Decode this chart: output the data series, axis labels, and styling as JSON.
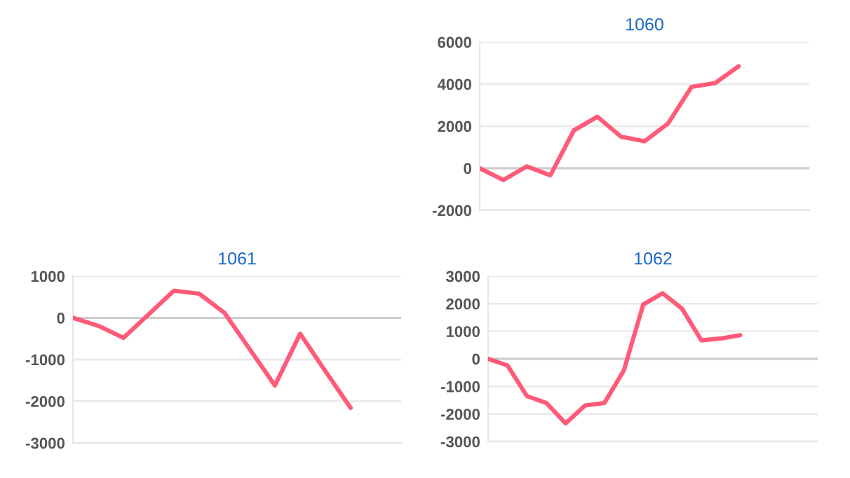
{
  "chart_data": [
    {
      "type": "line",
      "title": "1060",
      "categories": [
        null,
        null,
        null,
        null,
        null,
        null,
        null,
        null,
        null,
        null,
        null,
        null,
        null,
        null,
        null
      ],
      "series": [
        {
          "color": "#ff5a78",
          "values": [
            0,
            -560,
            90,
            -340,
            1800,
            2450,
            1500,
            1280,
            2130,
            3870,
            4050,
            4850,
            null,
            null,
            null
          ]
        }
      ],
      "ylim": [
        -2000,
        6000
      ],
      "yticks": [
        -2000,
        0,
        2000,
        4000,
        6000
      ],
      "grid": "y",
      "legend": false,
      "marker": "none",
      "line_style": "solid",
      "tick_labels": "y",
      "ref_lines": [
        {
          "axis": "y",
          "value": 0,
          "color": "#cccccc"
        }
      ]
    },
    {
      "type": "line",
      "title": "1061",
      "categories": [
        null,
        null,
        null,
        null,
        null,
        null,
        null,
        null,
        null,
        null,
        null,
        null,
        null,
        null
      ],
      "series": [
        {
          "color": "#ff5a78",
          "values": [
            0,
            -190,
            -480,
            85,
            650,
            580,
            120,
            -750,
            -1620,
            -380,
            -1280,
            -2160,
            null,
            null
          ]
        }
      ],
      "ylim": [
        -3000,
        1000
      ],
      "yticks": [
        -3000,
        -2000,
        -1000,
        0,
        1000
      ],
      "grid": "y",
      "legend": false,
      "marker": "none",
      "line_style": "solid",
      "tick_labels": "y",
      "ref_lines": [
        {
          "axis": "y",
          "value": 0,
          "color": "#cccccc"
        }
      ]
    },
    {
      "type": "line",
      "title": "1062",
      "categories": [
        null,
        null,
        null,
        null,
        null,
        null,
        null,
        null,
        null,
        null,
        null,
        null,
        null,
        null,
        null,
        null,
        null,
        null
      ],
      "series": [
        {
          "color": "#ff5a78",
          "values": [
            0,
            -240,
            -1350,
            -1600,
            -2340,
            -1690,
            -1600,
            -420,
            1970,
            2380,
            1820,
            670,
            740,
            860,
            null,
            null,
            null,
            null
          ]
        }
      ],
      "ylim": [
        -3000,
        3000
      ],
      "yticks": [
        -3000,
        -2000,
        -1000,
        0,
        1000,
        2000,
        3000
      ],
      "grid": "y",
      "legend": false,
      "marker": "none",
      "line_style": "solid",
      "tick_labels": "y",
      "ref_lines": [
        {
          "axis": "y",
          "value": 0,
          "color": "#cccccc"
        }
      ]
    }
  ]
}
